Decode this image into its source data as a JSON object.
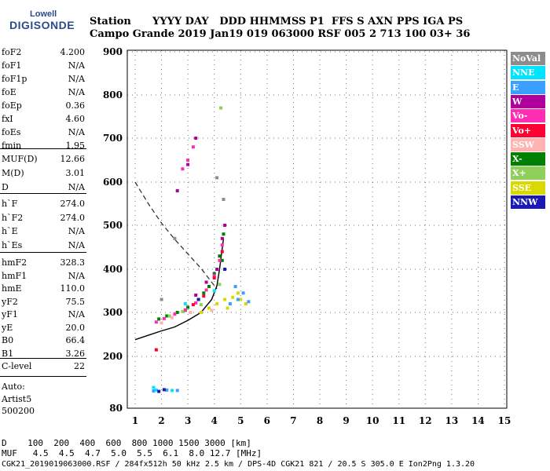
{
  "logo": {
    "brand_top": "Lowell",
    "brand_main": "DIGISONDE"
  },
  "header": {
    "row1": "Station      YYYY DAY   DDD HHMMSS P1  FFS S AXN PPS IGA PS",
    "row2": "Campo Grande 2019 Jan19 019 063000 RSF 005 2 713 100 03+ 36"
  },
  "params": [
    {
      "label": "foF2",
      "value": "4.200"
    },
    {
      "label": "foF1",
      "value": "N/A"
    },
    {
      "label": "foF1p",
      "value": "N/A"
    },
    {
      "label": "foE",
      "value": "N/A"
    },
    {
      "label": "foEp",
      "value": "0.36"
    },
    {
      "label": "fxI",
      "value": "4.60"
    },
    {
      "label": "foEs",
      "value": "N/A"
    },
    {
      "label": "fmin",
      "value": "1.95"
    },
    {
      "label": "MUF(D)",
      "value": "12.66"
    },
    {
      "label": "M(D)",
      "value": "3.01"
    },
    {
      "label": "D",
      "value": "N/A"
    },
    {
      "label": "h`F",
      "value": "274.0"
    },
    {
      "label": "h`F2",
      "value": "274.0"
    },
    {
      "label": "h`E",
      "value": "N/A"
    },
    {
      "label": "h`Es",
      "value": "N/A"
    },
    {
      "label": "hmF2",
      "value": "328.3"
    },
    {
      "label": "hmF1",
      "value": "N/A"
    },
    {
      "label": "hmE",
      "value": "110.0"
    },
    {
      "label": "yF2",
      "value": "75.5"
    },
    {
      "label": "yF1",
      "value": "N/A"
    },
    {
      "label": "yE",
      "value": "20.0"
    },
    {
      "label": "B0",
      "value": "66.4"
    },
    {
      "label": "B1",
      "value": "3.26"
    },
    {
      "label": "C-level",
      "value": "22"
    }
  ],
  "auto_block": {
    "line1": "Auto:",
    "line2": "Artist5",
    "line3": "500200"
  },
  "legend": [
    {
      "label": "NoVal",
      "color": "#8c8c8c"
    },
    {
      "label": "NNE",
      "color": "#00e5ff"
    },
    {
      "label": "E",
      "color": "#3aa0ff"
    },
    {
      "label": "W",
      "color": "#b0009b"
    },
    {
      "label": "Vo-",
      "color": "#ff2db4"
    },
    {
      "label": "Vo+",
      "color": "#ff0033"
    },
    {
      "label": "SSW",
      "color": "#ffb3b3"
    },
    {
      "label": "X-",
      "color": "#008000"
    },
    {
      "label": "X+",
      "color": "#8fcf5a"
    },
    {
      "label": "SSE",
      "color": "#d9d900"
    },
    {
      "label": "NNW",
      "color": "#1a1ab3"
    }
  ],
  "bottom": {
    "distance_row": "D    100  200  400  600  800 1000 1500 3000 [km]",
    "muf_row": "MUF   4.5  4.5  4.7  5.0  5.5  6.1  8.0 12.7 [MHz]",
    "footer": "CGK21_2019019063000.RSF / 284fx512h 50 kHz 2.5 km / DPS-4D CGK21 821 / 20.5 S 305.0 E Ion2Png 1.3.20"
  },
  "chart_data": {
    "type": "scatter",
    "title": "",
    "xlabel": "",
    "ylabel": "",
    "xlim": [
      1,
      15
    ],
    "ylim": [
      80,
      900
    ],
    "x_ticks": [
      "1",
      "2",
      "3",
      "4",
      "5",
      "6",
      "7",
      "8",
      "9",
      "10",
      "11",
      "12",
      "13",
      "14",
      "15"
    ],
    "y_ticks": [
      "80",
      "200",
      "300",
      "400",
      "500",
      "600",
      "700",
      "800",
      "900"
    ],
    "y_tick_values": [
      80,
      200,
      300,
      400,
      500,
      600,
      700,
      800,
      900
    ],
    "grid": true,
    "legend_placement": "right",
    "series": [
      {
        "name": "X-",
        "color": "#008000",
        "points": [
          [
            1.9,
            285
          ],
          [
            2.2,
            292
          ],
          [
            2.6,
            300
          ],
          [
            3.0,
            312
          ],
          [
            3.4,
            330
          ],
          [
            3.8,
            360
          ],
          [
            4.0,
            390
          ],
          [
            4.2,
            430
          ],
          [
            4.35,
            480
          ],
          [
            4.3,
            420
          ],
          [
            3.6,
            345
          ],
          [
            2.9,
            305
          ]
        ]
      },
      {
        "name": "Vo-",
        "color": "#ff2db4",
        "points": [
          [
            1.8,
            278
          ],
          [
            2.1,
            286
          ],
          [
            2.5,
            296
          ],
          [
            2.9,
            306
          ],
          [
            3.3,
            322
          ],
          [
            3.7,
            352
          ],
          [
            4.0,
            385
          ],
          [
            4.2,
            420
          ],
          [
            4.3,
            455
          ],
          [
            2.8,
            630
          ],
          [
            3.0,
            650
          ],
          [
            3.2,
            680
          ]
        ]
      },
      {
        "name": "SSE",
        "color": "#d9d900",
        "points": [
          [
            3.5,
            300
          ],
          [
            3.8,
            310
          ],
          [
            4.1,
            320
          ],
          [
            4.4,
            330
          ],
          [
            4.7,
            335
          ],
          [
            5.0,
            330
          ],
          [
            5.2,
            320
          ],
          [
            4.9,
            345
          ],
          [
            4.5,
            310
          ]
        ]
      },
      {
        "name": "E",
        "color": "#3aa0ff",
        "points": [
          [
            4.6,
            320
          ],
          [
            4.9,
            330
          ],
          [
            5.1,
            345
          ],
          [
            5.3,
            325
          ],
          [
            4.8,
            360
          ],
          [
            1.7,
            120
          ],
          [
            2.2,
            122
          ],
          [
            2.6,
            121
          ]
        ]
      },
      {
        "name": "NNE",
        "color": "#00e5ff",
        "points": [
          [
            1.8,
            122
          ],
          [
            2.4,
            121
          ],
          [
            2.9,
            320
          ],
          [
            4.0,
            350
          ],
          [
            1.7,
            128
          ]
        ]
      },
      {
        "name": "W",
        "color": "#b0009b",
        "points": [
          [
            3.3,
            340
          ],
          [
            3.7,
            370
          ],
          [
            4.1,
            400
          ],
          [
            4.3,
            470
          ],
          [
            4.4,
            500
          ],
          [
            3.0,
            640
          ],
          [
            3.3,
            700
          ],
          [
            2.6,
            580
          ]
        ]
      },
      {
        "name": "Vo+",
        "color": "#ff0033",
        "points": [
          [
            3.2,
            318
          ],
          [
            3.6,
            338
          ],
          [
            4.0,
            380
          ],
          [
            4.3,
            440
          ],
          [
            1.8,
            215
          ]
        ]
      },
      {
        "name": "SSW",
        "color": "#ffb3b3",
        "points": [
          [
            2.0,
            276
          ],
          [
            2.4,
            288
          ],
          [
            3.1,
            300
          ],
          [
            3.9,
            305
          ]
        ]
      },
      {
        "name": "X+",
        "color": "#8fcf5a",
        "points": [
          [
            2.3,
            292
          ],
          [
            2.8,
            302
          ],
          [
            3.5,
            318
          ],
          [
            4.2,
            365
          ],
          [
            4.25,
            770
          ]
        ]
      },
      {
        "name": "NNW",
        "color": "#1a1ab3",
        "points": [
          [
            3.4,
            330
          ],
          [
            4.4,
            400
          ],
          [
            1.9,
            119
          ],
          [
            2.1,
            123
          ]
        ]
      },
      {
        "name": "NoVal",
        "color": "#8c8c8c",
        "points": [
          [
            2.0,
            330
          ],
          [
            2.5,
            470
          ],
          [
            4.35,
            560
          ],
          [
            4.1,
            610
          ]
        ]
      }
    ],
    "profile_curve": [
      [
        1,
        238
      ],
      [
        1.5,
        248
      ],
      [
        2,
        258
      ],
      [
        2.5,
        267
      ],
      [
        3,
        282
      ],
      [
        3.5,
        300
      ],
      [
        3.9,
        330
      ],
      [
        4.1,
        362
      ],
      [
        4.2,
        400
      ],
      [
        4.35,
        470
      ]
    ],
    "dashed_curve": [
      [
        1,
        600
      ],
      [
        1.5,
        550
      ],
      [
        2,
        505
      ],
      [
        2.5,
        468
      ],
      [
        3,
        435
      ],
      [
        3.5,
        402
      ],
      [
        3.9,
        370
      ],
      [
        4.1,
        355
      ]
    ]
  }
}
